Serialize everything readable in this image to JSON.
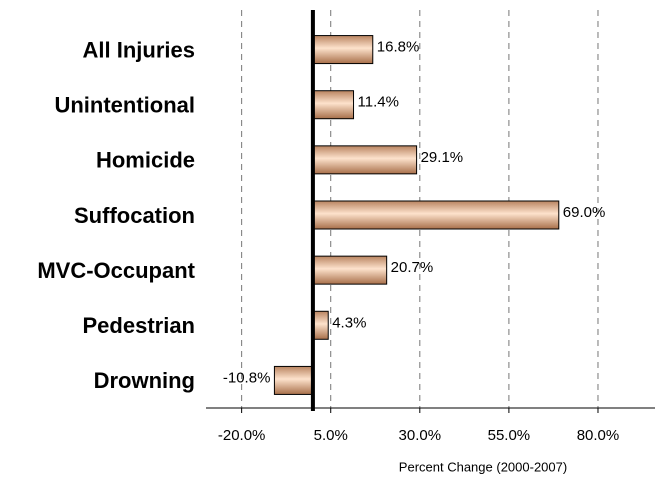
{
  "chart_data": {
    "type": "hbar",
    "x_label": "Percent Change (2000-2007)",
    "categories": [
      "All Injuries",
      "Unintentional",
      "Homicide",
      "Suffocation",
      "MVC-Occupant",
      "Pedestrian",
      "Drowning"
    ],
    "values": [
      16.8,
      11.4,
      29.1,
      69.0,
      20.7,
      4.3,
      -10.8
    ],
    "value_labels": [
      "16.8%",
      "11.4%",
      "29.1%",
      "69.0%",
      "20.7%",
      "4.3%",
      "-10.8%"
    ],
    "xlim": [
      -30,
      96
    ],
    "xticks": [
      {
        "value": -20,
        "label": "-20.0%"
      },
      {
        "value": 5,
        "label": "5.0%"
      },
      {
        "value": 30,
        "label": "30.0%"
      },
      {
        "value": 55,
        "label": "55.0%"
      },
      {
        "value": 80,
        "label": "80.0%"
      }
    ],
    "grid": true,
    "color": "#e8b890"
  }
}
